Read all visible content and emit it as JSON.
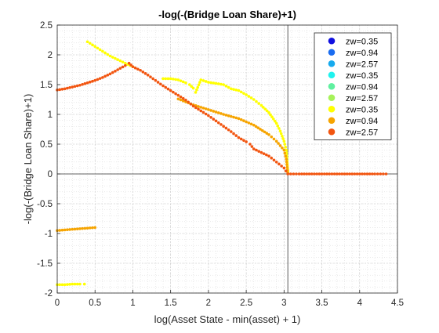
{
  "chart_data": {
    "type": "scatter",
    "title": "-log(-(Bridge Loan Share)+1)",
    "xlabel": "log(Asset State - min(asset) + 1)",
    "ylabel": "-log(-(Bridge Loan Share)+1)",
    "xlim": [
      0,
      4.5
    ],
    "ylim": [
      -2,
      2.5
    ],
    "x_ticks": [
      0,
      0.5,
      1,
      1.5,
      2,
      2.5,
      3,
      3.5,
      4,
      4.5
    ],
    "x_tick_labels": [
      "0",
      "0.5",
      "1",
      "1.5",
      "2",
      "2.5",
      "3",
      "3.5",
      "4",
      "4.5"
    ],
    "y_ticks": [
      2.5,
      2,
      1.5,
      1,
      0.5,
      0,
      -0.5,
      -1,
      -1.5,
      -2
    ],
    "y_tick_labels": [
      "2.5",
      "2",
      "1.5",
      "1",
      "0.5",
      "0",
      "-0.5",
      "-1",
      "-1.5",
      "-2"
    ],
    "grid": true,
    "minor_grid": true,
    "reference_lines": {
      "x": 3.05,
      "y": 0
    },
    "legend_position": "top-right",
    "series": [
      {
        "name": "zw=0.35",
        "color": "#1010e0",
        "points": []
      },
      {
        "name": "zw=0.94",
        "color": "#1a6cf0",
        "points": []
      },
      {
        "name": "zw=2.57",
        "color": "#16aaee",
        "points": []
      },
      {
        "name": "zw=0.35",
        "color": "#1ff2ee",
        "points": []
      },
      {
        "name": "zw=0.94",
        "color": "#60f0a0",
        "points": []
      },
      {
        "name": "zw=2.57",
        "color": "#a6f25a",
        "points": []
      },
      {
        "name": "zw=0.35",
        "color": "#ffff00",
        "points": [
          [
            0.4,
            2.22
          ],
          [
            0.5,
            2.14
          ],
          [
            0.6,
            2.06
          ],
          [
            0.7,
            1.98
          ],
          [
            0.8,
            1.92
          ],
          [
            0.9,
            1.86
          ],
          [
            1.0,
            1.8
          ],
          [
            0.0,
            -1.86
          ],
          [
            0.1,
            -1.86
          ],
          [
            0.2,
            -1.85
          ],
          [
            0.3,
            -1.85
          ],
          [
            0.36,
            -1.85
          ],
          [
            1.4,
            1.6
          ],
          [
            1.5,
            1.6
          ],
          [
            1.6,
            1.58
          ],
          [
            1.7,
            1.53
          ],
          [
            1.75,
            1.5
          ],
          [
            1.8,
            1.44
          ],
          [
            1.83,
            1.37
          ],
          [
            1.9,
            1.58
          ],
          [
            2.0,
            1.54
          ],
          [
            2.1,
            1.52
          ],
          [
            2.2,
            1.5
          ],
          [
            2.3,
            1.43
          ],
          [
            2.4,
            1.4
          ],
          [
            2.5,
            1.33
          ],
          [
            2.6,
            1.25
          ],
          [
            2.7,
            1.15
          ],
          [
            2.8,
            1.03
          ],
          [
            2.9,
            0.85
          ],
          [
            2.95,
            0.72
          ],
          [
            3.0,
            0.55
          ],
          [
            3.03,
            0.4
          ],
          [
            3.05,
            0.05
          ]
        ]
      },
      {
        "name": "zw=0.94",
        "color": "#f6a400",
        "points": [
          [
            0.0,
            -0.95
          ],
          [
            0.1,
            -0.94
          ],
          [
            0.2,
            -0.93
          ],
          [
            0.3,
            -0.92
          ],
          [
            0.4,
            -0.91
          ],
          [
            0.5,
            -0.9
          ],
          [
            1.6,
            1.26
          ],
          [
            1.8,
            1.16
          ],
          [
            2.0,
            1.08
          ],
          [
            2.2,
            1.0
          ],
          [
            2.4,
            0.93
          ],
          [
            2.6,
            0.82
          ],
          [
            2.8,
            0.66
          ],
          [
            2.9,
            0.55
          ],
          [
            3.0,
            0.4
          ],
          [
            3.03,
            0.25
          ],
          [
            3.05,
            0.02
          ]
        ]
      },
      {
        "name": "zw=2.57",
        "color": "#f25510",
        "points": [
          [
            0.0,
            1.41
          ],
          [
            0.1,
            1.43
          ],
          [
            0.2,
            1.46
          ],
          [
            0.3,
            1.49
          ],
          [
            0.4,
            1.53
          ],
          [
            0.5,
            1.57
          ],
          [
            0.6,
            1.62
          ],
          [
            0.7,
            1.68
          ],
          [
            0.8,
            1.75
          ],
          [
            0.9,
            1.82
          ],
          [
            0.95,
            1.86
          ],
          [
            1.0,
            1.8
          ],
          [
            1.1,
            1.74
          ],
          [
            1.2,
            1.66
          ],
          [
            1.3,
            1.57
          ],
          [
            1.4,
            1.48
          ],
          [
            1.5,
            1.4
          ],
          [
            1.6,
            1.32
          ],
          [
            1.7,
            1.24
          ],
          [
            1.8,
            1.14
          ],
          [
            1.9,
            1.06
          ],
          [
            2.0,
            0.98
          ],
          [
            2.1,
            0.89
          ],
          [
            2.2,
            0.8
          ],
          [
            2.3,
            0.71
          ],
          [
            2.4,
            0.61
          ],
          [
            2.5,
            0.54
          ],
          [
            2.55,
            0.5
          ],
          [
            2.6,
            0.42
          ],
          [
            2.7,
            0.36
          ],
          [
            2.8,
            0.3
          ],
          [
            2.9,
            0.2
          ],
          [
            3.0,
            0.1
          ],
          [
            3.05,
            0.0
          ],
          [
            3.2,
            0.0
          ],
          [
            3.4,
            0.0
          ],
          [
            3.6,
            0.0
          ],
          [
            3.8,
            0.0
          ],
          [
            4.0,
            0.0
          ],
          [
            4.2,
            0.0
          ],
          [
            4.35,
            0.0
          ]
        ]
      }
    ]
  }
}
